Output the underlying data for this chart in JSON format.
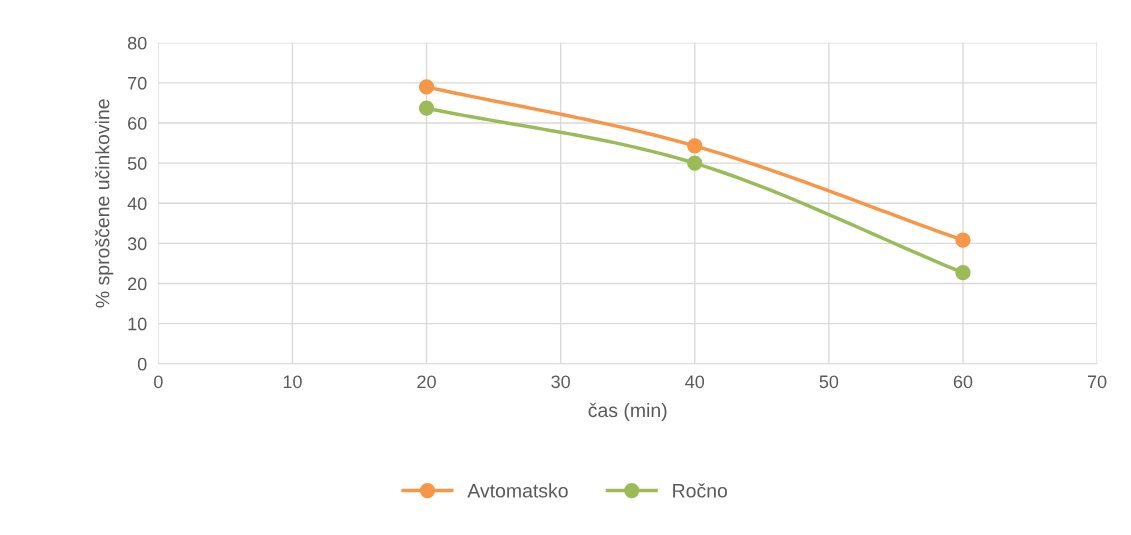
{
  "chart_data": {
    "type": "line",
    "xlabel": "čas (min)",
    "ylabel": "% sproščene učinkovine",
    "x": [
      20,
      40,
      60
    ],
    "series": [
      {
        "name": "Avtomatsko",
        "color": "#f79646",
        "values": [
          69,
          54.3,
          30.8
        ]
      },
      {
        "name": "Ročno",
        "color": "#9bbb59",
        "values": [
          63.7,
          50,
          22.7
        ]
      }
    ],
    "xlim": [
      0,
      70
    ],
    "xticks": [
      0,
      10,
      20,
      30,
      40,
      50,
      60,
      70
    ],
    "ylim": [
      0,
      80
    ],
    "yticks": [
      0,
      10,
      20,
      30,
      40,
      50,
      60,
      70,
      80
    ],
    "grid": true,
    "legend": "bottom",
    "marker": "circle",
    "line_style": "solid"
  }
}
